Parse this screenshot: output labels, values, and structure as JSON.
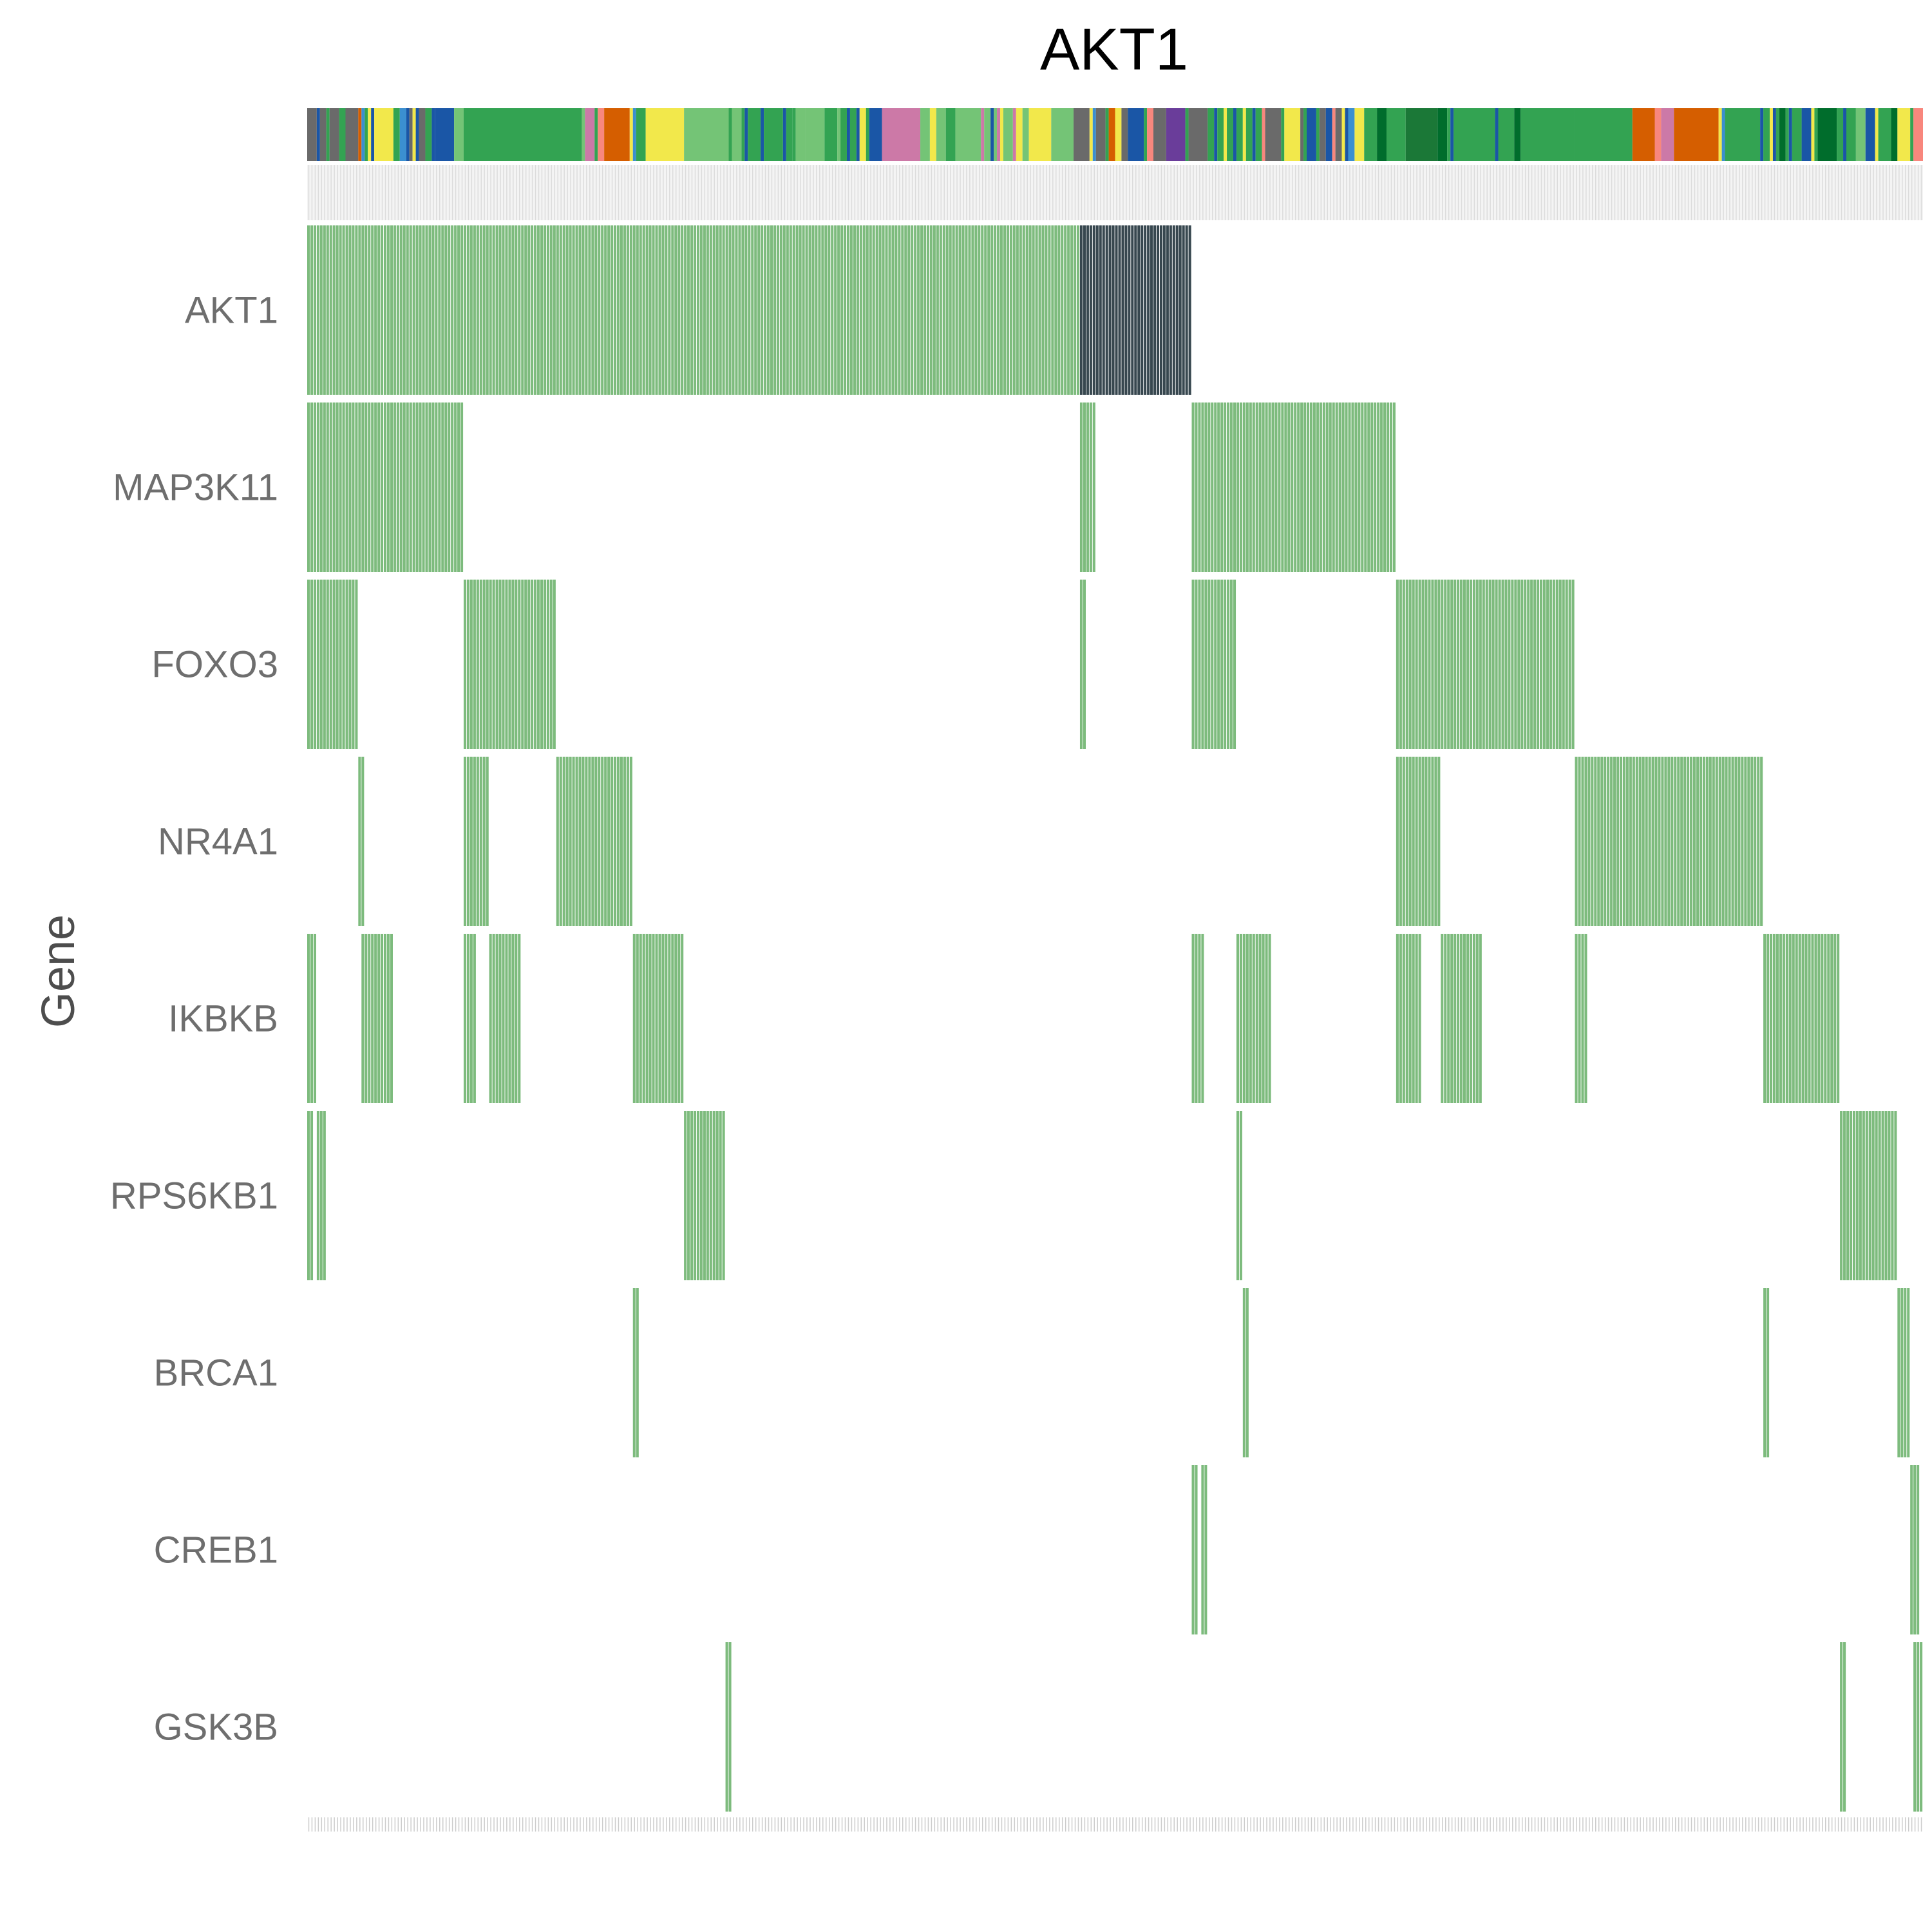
{
  "chart_data": {
    "type": "heatmap",
    "title": "AKT1",
    "xlabel": "",
    "ylabel": "Gene",
    "genes": [
      "AKT1",
      "MAP3K11",
      "FOXO3",
      "NR4A1",
      "IKBKB",
      "RPS6KB1",
      "BRCA1",
      "CREB1",
      "GSK3B"
    ],
    "n_samples": 506,
    "sample_range": [
      0,
      506
    ],
    "colors": {
      "alteration": "#7dbb7d",
      "amplification": "#37474f",
      "annotation_bg": "#dcdcdc",
      "tick": "#cccccc",
      "axis_text": "#6e6e6e"
    },
    "annotation_palette": [
      "#6a6a6a",
      "#1a56a6",
      "#33a352",
      "#f2e84b",
      "#74c476",
      "#d55e00",
      "#cc79a7",
      "#f8877d",
      "#3b8fd0",
      "#1b7837",
      "#6a3d9a",
      "#006d2c"
    ],
    "sample_annotation": [
      {
        "start": 0,
        "end": 3,
        "color": "#6a6a6a"
      },
      {
        "start": 3,
        "end": 4,
        "color": "#1a56a6"
      },
      {
        "start": 4,
        "end": 6,
        "color": "#6a6a6a"
      },
      {
        "start": 6,
        "end": 7,
        "color": "#33a352"
      },
      {
        "start": 7,
        "end": 10,
        "color": "#6a6a6a"
      },
      {
        "start": 10,
        "end": 12,
        "color": "#33a352"
      },
      {
        "start": 12,
        "end": 16,
        "color": "#6a6a6a"
      },
      {
        "start": 16,
        "end": 17,
        "color": "#d55e00"
      },
      {
        "start": 17,
        "end": 18,
        "color": "#3b8fd0"
      },
      {
        "start": 18,
        "end": 19,
        "color": "#33a352"
      },
      {
        "start": 19,
        "end": 20,
        "color": "#f2e84b"
      },
      {
        "start": 20,
        "end": 21,
        "color": "#1a56a6"
      },
      {
        "start": 21,
        "end": 27,
        "color": "#f2e84b"
      },
      {
        "start": 27,
        "end": 29,
        "color": "#33a352"
      },
      {
        "start": 29,
        "end": 31,
        "color": "#3b8fd0"
      },
      {
        "start": 31,
        "end": 32,
        "color": "#1a56a6"
      },
      {
        "start": 32,
        "end": 33,
        "color": "#6a6a6a"
      },
      {
        "start": 33,
        "end": 34,
        "color": "#f2e84b"
      },
      {
        "start": 34,
        "end": 35,
        "color": "#1a56a6"
      },
      {
        "start": 35,
        "end": 37,
        "color": "#6a6a6a"
      },
      {
        "start": 37,
        "end": 39,
        "color": "#33a352"
      },
      {
        "start": 39,
        "end": 40,
        "color": "#1a56a6"
      },
      {
        "start": 40,
        "end": 46,
        "color": "#1a56a6"
      },
      {
        "start": 46,
        "end": 49,
        "color": "#74c476"
      },
      {
        "start": 49,
        "end": 86,
        "color": "#33a352"
      },
      {
        "start": 86,
        "end": 87,
        "color": "#74c476"
      },
      {
        "start": 87,
        "end": 90,
        "color": "#cc79a7"
      },
      {
        "start": 90,
        "end": 91,
        "color": "#33a352"
      },
      {
        "start": 91,
        "end": 93,
        "color": "#f8877d"
      },
      {
        "start": 93,
        "end": 101,
        "color": "#d55e00"
      },
      {
        "start": 101,
        "end": 102,
        "color": "#f2e84b"
      },
      {
        "start": 102,
        "end": 103,
        "color": "#3b8fd0"
      },
      {
        "start": 103,
        "end": 106,
        "color": "#33a352"
      },
      {
        "start": 106,
        "end": 118,
        "color": "#f2e84b"
      },
      {
        "start": 118,
        "end": 132,
        "color": "#74c476"
      },
      {
        "start": 132,
        "end": 133,
        "color": "#33a352"
      },
      {
        "start": 133,
        "end": 136,
        "color": "#74c476"
      },
      {
        "start": 136,
        "end": 137,
        "color": "#33a352"
      },
      {
        "start": 137,
        "end": 138,
        "color": "#1a56a6"
      },
      {
        "start": 138,
        "end": 142,
        "color": "#33a352"
      },
      {
        "start": 142,
        "end": 143,
        "color": "#1a56a6"
      },
      {
        "start": 143,
        "end": 145,
        "color": "#33a352"
      },
      {
        "start": 145,
        "end": 149,
        "color": "#33a352"
      },
      {
        "start": 149,
        "end": 150,
        "color": "#1a56a6"
      },
      {
        "start": 150,
        "end": 152,
        "color": "#33a352"
      },
      {
        "start": 152,
        "end": 153,
        "color": "#33a352"
      },
      {
        "start": 153,
        "end": 156,
        "color": "#74c476"
      },
      {
        "start": 156,
        "end": 162,
        "color": "#74c476"
      },
      {
        "start": 162,
        "end": 166,
        "color": "#33a352"
      },
      {
        "start": 166,
        "end": 167,
        "color": "#74c476"
      },
      {
        "start": 167,
        "end": 169,
        "color": "#33a352"
      },
      {
        "start": 169,
        "end": 170,
        "color": "#1a56a6"
      },
      {
        "start": 170,
        "end": 172,
        "color": "#33a352"
      },
      {
        "start": 172,
        "end": 173,
        "color": "#1a56a6"
      },
      {
        "start": 173,
        "end": 175,
        "color": "#f2e84b"
      },
      {
        "start": 175,
        "end": 176,
        "color": "#33a352"
      },
      {
        "start": 176,
        "end": 180,
        "color": "#1a56a6"
      },
      {
        "start": 180,
        "end": 192,
        "color": "#cc79a7"
      },
      {
        "start": 192,
        "end": 195,
        "color": "#74c476"
      },
      {
        "start": 195,
        "end": 197,
        "color": "#f2e84b"
      },
      {
        "start": 197,
        "end": 200,
        "color": "#74c476"
      },
      {
        "start": 200,
        "end": 203,
        "color": "#33a352"
      },
      {
        "start": 203,
        "end": 211,
        "color": "#74c476"
      },
      {
        "start": 211,
        "end": 212,
        "color": "#cc79a7"
      },
      {
        "start": 212,
        "end": 214,
        "color": "#74c476"
      },
      {
        "start": 214,
        "end": 215,
        "color": "#1a56a6"
      },
      {
        "start": 215,
        "end": 216,
        "color": "#74c476"
      },
      {
        "start": 216,
        "end": 217,
        "color": "#cc79a7"
      },
      {
        "start": 217,
        "end": 218,
        "color": "#f2e84b"
      },
      {
        "start": 218,
        "end": 221,
        "color": "#74c476"
      },
      {
        "start": 221,
        "end": 222,
        "color": "#cc79a7"
      },
      {
        "start": 222,
        "end": 224,
        "color": "#f2e84b"
      },
      {
        "start": 224,
        "end": 226,
        "color": "#74c476"
      },
      {
        "start": 226,
        "end": 233,
        "color": "#f2e84b"
      },
      {
        "start": 233,
        "end": 240,
        "color": "#74c476"
      },
      {
        "start": 240,
        "end": 245,
        "color": "#6a6a6a"
      },
      {
        "start": 245,
        "end": 246,
        "color": "#f2e84b"
      },
      {
        "start": 246,
        "end": 247,
        "color": "#3b8fd0"
      },
      {
        "start": 247,
        "end": 250,
        "color": "#6a6a6a"
      },
      {
        "start": 250,
        "end": 251,
        "color": "#33a352"
      },
      {
        "start": 251,
        "end": 253,
        "color": "#d55e00"
      },
      {
        "start": 253,
        "end": 255,
        "color": "#f2e84b"
      },
      {
        "start": 255,
        "end": 257,
        "color": "#6a6a6a"
      },
      {
        "start": 257,
        "end": 262,
        "color": "#1a56a6"
      },
      {
        "start": 262,
        "end": 263,
        "color": "#33a352"
      },
      {
        "start": 263,
        "end": 265,
        "color": "#f8877d"
      },
      {
        "start": 265,
        "end": 269,
        "color": "#6a6a6a"
      },
      {
        "start": 269,
        "end": 275,
        "color": "#6a3d9a"
      },
      {
        "start": 275,
        "end": 276,
        "color": "#33a352"
      },
      {
        "start": 276,
        "end": 282,
        "color": "#6a6a6a"
      },
      {
        "start": 282,
        "end": 284,
        "color": "#33a352"
      },
      {
        "start": 284,
        "end": 285,
        "color": "#1a56a6"
      },
      {
        "start": 285,
        "end": 287,
        "color": "#33a352"
      },
      {
        "start": 287,
        "end": 288,
        "color": "#f2e84b"
      },
      {
        "start": 288,
        "end": 290,
        "color": "#33a352"
      },
      {
        "start": 290,
        "end": 291,
        "color": "#1a56a6"
      },
      {
        "start": 291,
        "end": 293,
        "color": "#33a352"
      },
      {
        "start": 293,
        "end": 294,
        "color": "#f2e84b"
      },
      {
        "start": 294,
        "end": 296,
        "color": "#33a352"
      },
      {
        "start": 296,
        "end": 297,
        "color": "#1a56a6"
      },
      {
        "start": 297,
        "end": 299,
        "color": "#33a352"
      },
      {
        "start": 299,
        "end": 300,
        "color": "#f8877d"
      },
      {
        "start": 300,
        "end": 305,
        "color": "#6a6a6a"
      },
      {
        "start": 305,
        "end": 306,
        "color": "#33a352"
      },
      {
        "start": 306,
        "end": 311,
        "color": "#f2e84b"
      },
      {
        "start": 311,
        "end": 312,
        "color": "#6a6a6a"
      },
      {
        "start": 312,
        "end": 313,
        "color": "#33a352"
      },
      {
        "start": 313,
        "end": 316,
        "color": "#1a56a6"
      },
      {
        "start": 316,
        "end": 317,
        "color": "#33a352"
      },
      {
        "start": 317,
        "end": 319,
        "color": "#6a6a6a"
      },
      {
        "start": 319,
        "end": 321,
        "color": "#1a56a6"
      },
      {
        "start": 321,
        "end": 322,
        "color": "#f8877d"
      },
      {
        "start": 322,
        "end": 324,
        "color": "#6a6a6a"
      },
      {
        "start": 324,
        "end": 325,
        "color": "#f2e84b"
      },
      {
        "start": 325,
        "end": 326,
        "color": "#1a56a6"
      },
      {
        "start": 326,
        "end": 328,
        "color": "#3b8fd0"
      },
      {
        "start": 328,
        "end": 331,
        "color": "#f2e84b"
      },
      {
        "start": 331,
        "end": 335,
        "color": "#33a352"
      },
      {
        "start": 335,
        "end": 338,
        "color": "#006d2c"
      },
      {
        "start": 338,
        "end": 344,
        "color": "#33a352"
      },
      {
        "start": 344,
        "end": 354,
        "color": "#1b7837"
      },
      {
        "start": 354,
        "end": 357,
        "color": "#006d2c"
      },
      {
        "start": 357,
        "end": 358,
        "color": "#33a352"
      },
      {
        "start": 358,
        "end": 359,
        "color": "#1a56a6"
      },
      {
        "start": 359,
        "end": 372,
        "color": "#33a352"
      },
      {
        "start": 372,
        "end": 373,
        "color": "#1a56a6"
      },
      {
        "start": 373,
        "end": 378,
        "color": "#33a352"
      },
      {
        "start": 378,
        "end": 380,
        "color": "#006d2c"
      },
      {
        "start": 380,
        "end": 397,
        "color": "#33a352"
      },
      {
        "start": 397,
        "end": 415,
        "color": "#33a352"
      },
      {
        "start": 415,
        "end": 422,
        "color": "#d55e00"
      },
      {
        "start": 422,
        "end": 424,
        "color": "#f8877d"
      },
      {
        "start": 424,
        "end": 428,
        "color": "#cc79a7"
      },
      {
        "start": 428,
        "end": 442,
        "color": "#d55e00"
      },
      {
        "start": 442,
        "end": 443,
        "color": "#f2e84b"
      },
      {
        "start": 443,
        "end": 444,
        "color": "#3b8fd0"
      },
      {
        "start": 444,
        "end": 455,
        "color": "#33a352"
      },
      {
        "start": 455,
        "end": 456,
        "color": "#1a56a6"
      },
      {
        "start": 456,
        "end": 458,
        "color": "#33a352"
      },
      {
        "start": 458,
        "end": 459,
        "color": "#f2e84b"
      },
      {
        "start": 459,
        "end": 460,
        "color": "#1a56a6"
      },
      {
        "start": 460,
        "end": 461,
        "color": "#33a352"
      },
      {
        "start": 461,
        "end": 463,
        "color": "#006d2c"
      },
      {
        "start": 463,
        "end": 464,
        "color": "#33a352"
      },
      {
        "start": 464,
        "end": 465,
        "color": "#1a56a6"
      },
      {
        "start": 465,
        "end": 468,
        "color": "#33a352"
      },
      {
        "start": 468,
        "end": 471,
        "color": "#1a56a6"
      },
      {
        "start": 471,
        "end": 472,
        "color": "#f2e84b"
      },
      {
        "start": 472,
        "end": 473,
        "color": "#33a352"
      },
      {
        "start": 473,
        "end": 479,
        "color": "#006d2c"
      },
      {
        "start": 479,
        "end": 481,
        "color": "#33a352"
      },
      {
        "start": 481,
        "end": 482,
        "color": "#1a56a6"
      },
      {
        "start": 482,
        "end": 485,
        "color": "#33a352"
      },
      {
        "start": 485,
        "end": 488,
        "color": "#74c476"
      },
      {
        "start": 488,
        "end": 491,
        "color": "#1a56a6"
      },
      {
        "start": 491,
        "end": 492,
        "color": "#f2e84b"
      },
      {
        "start": 492,
        "end": 496,
        "color": "#33a352"
      },
      {
        "start": 496,
        "end": 498,
        "color": "#006d2c"
      },
      {
        "start": 498,
        "end": 502,
        "color": "#f2e84b"
      },
      {
        "start": 502,
        "end": 503,
        "color": "#33a352"
      },
      {
        "start": 503,
        "end": 506,
        "color": "#f8877d"
      }
    ],
    "alteration_blocks": {
      "AKT1": [
        {
          "start": 0,
          "end": 242,
          "type": "alteration"
        },
        {
          "start": 242,
          "end": 277,
          "type": "amplification"
        }
      ],
      "MAP3K11": [
        {
          "start": 0,
          "end": 49
        },
        {
          "start": 242,
          "end": 247
        },
        {
          "start": 277,
          "end": 341
        }
      ],
      "FOXO3": [
        {
          "start": 0,
          "end": 16
        },
        {
          "start": 49,
          "end": 78
        },
        {
          "start": 242,
          "end": 244
        },
        {
          "start": 277,
          "end": 291
        },
        {
          "start": 341,
          "end": 397
        }
      ],
      "NR4A1": [
        {
          "start": 16,
          "end": 18
        },
        {
          "start": 49,
          "end": 57
        },
        {
          "start": 78,
          "end": 102
        },
        {
          "start": 341,
          "end": 355
        },
        {
          "start": 397,
          "end": 456
        }
      ],
      "IKBKB": [
        {
          "start": 0,
          "end": 3
        },
        {
          "start": 17,
          "end": 27
        },
        {
          "start": 49,
          "end": 53
        },
        {
          "start": 57,
          "end": 67
        },
        {
          "start": 102,
          "end": 118
        },
        {
          "start": 277,
          "end": 281
        },
        {
          "start": 291,
          "end": 302
        },
        {
          "start": 341,
          "end": 349
        },
        {
          "start": 355,
          "end": 368
        },
        {
          "start": 397,
          "end": 401
        },
        {
          "start": 456,
          "end": 480
        }
      ],
      "RPS6KB1": [
        {
          "start": 0,
          "end": 2
        },
        {
          "start": 3,
          "end": 6
        },
        {
          "start": 118,
          "end": 131
        },
        {
          "start": 291,
          "end": 293
        },
        {
          "start": 480,
          "end": 498
        }
      ],
      "BRCA1": [
        {
          "start": 102,
          "end": 104
        },
        {
          "start": 293,
          "end": 295
        },
        {
          "start": 456,
          "end": 458
        },
        {
          "start": 498,
          "end": 502
        }
      ],
      "CREB1": [
        {
          "start": 277,
          "end": 279
        },
        {
          "start": 280,
          "end": 282
        },
        {
          "start": 502,
          "end": 505
        }
      ],
      "GSK3B": [
        {
          "start": 131,
          "end": 133
        },
        {
          "start": 480,
          "end": 482
        },
        {
          "start": 503,
          "end": 506
        }
      ]
    }
  }
}
